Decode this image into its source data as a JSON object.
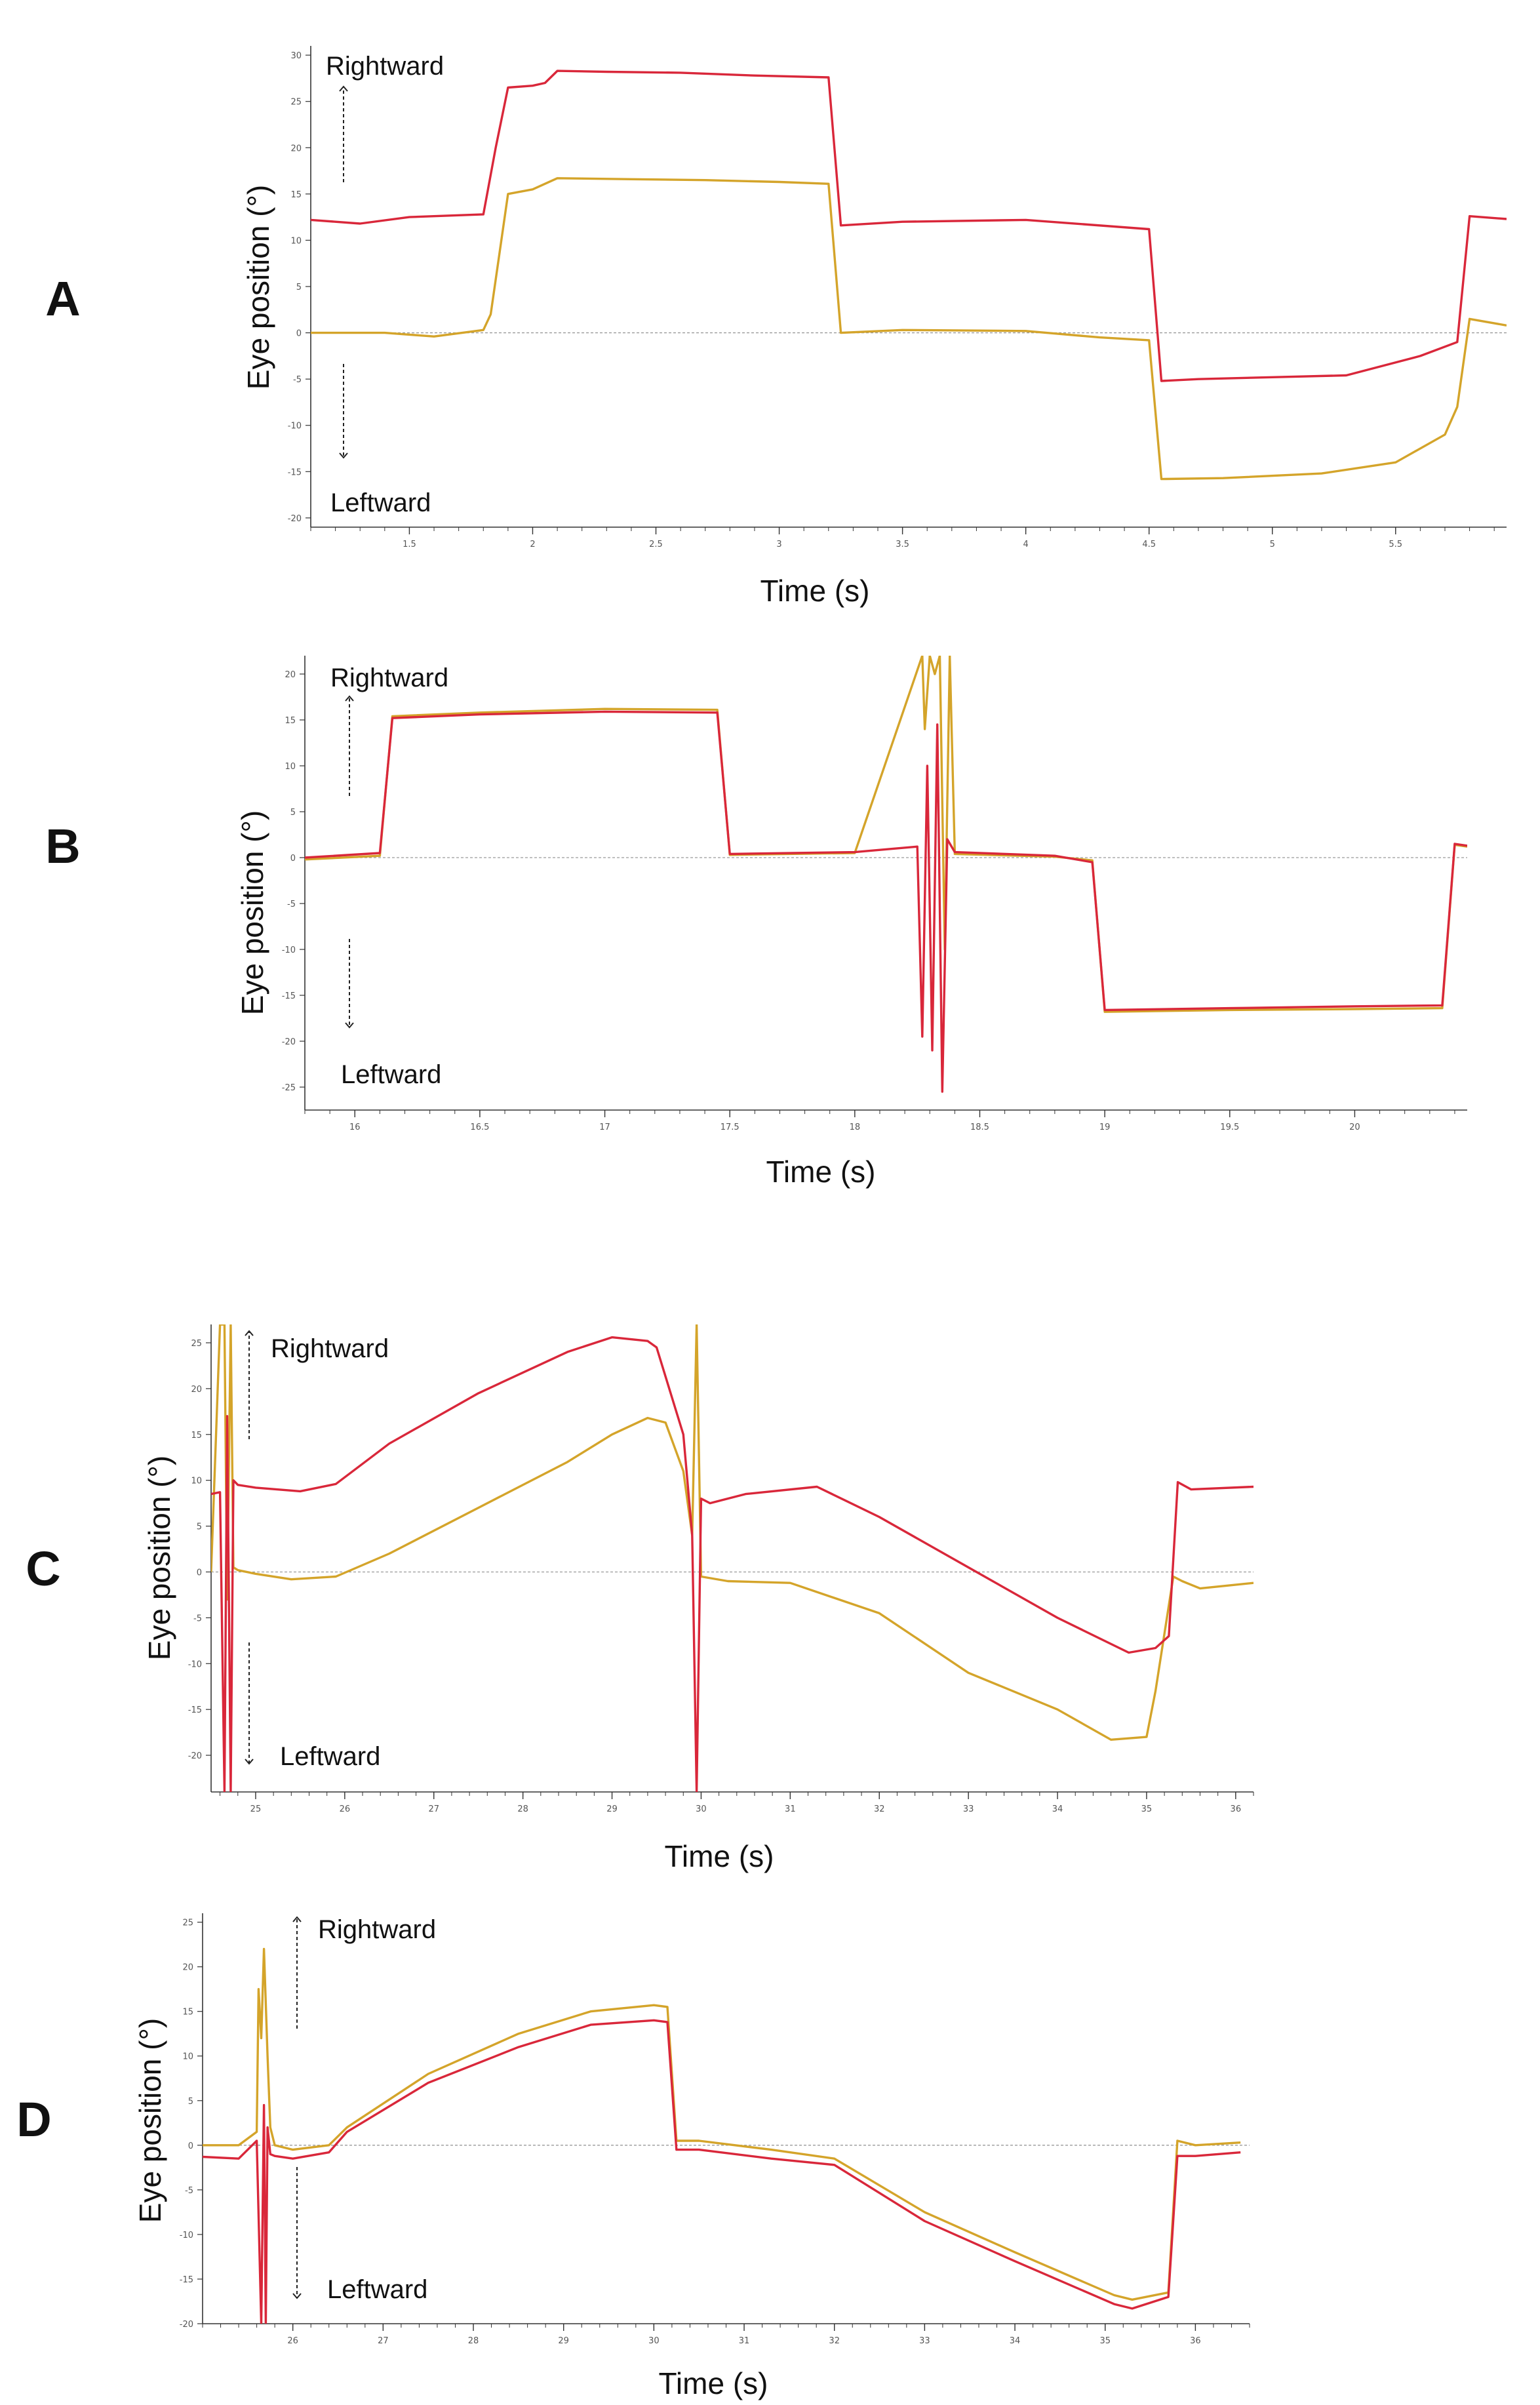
{
  "colors": {
    "right_eye": "#d9273a",
    "left_eye": "#d4a42a",
    "zero_line": "#9a9a9a",
    "axis": "#333333"
  },
  "labels": {
    "up": "Rightward",
    "down": "Leftward"
  },
  "chart_data": [
    {
      "type": "line",
      "panel": "A",
      "xlabel": "Time (s)",
      "ylabel": "Eye position  (°)",
      "xlim": [
        1.1,
        5.95
      ],
      "ylim": [
        -21,
        31
      ],
      "xticks": [
        1.5,
        2,
        2.5,
        3,
        3.5,
        4,
        4.5,
        5,
        5.5
      ],
      "yticks": [
        30,
        25,
        20,
        15,
        10,
        5,
        0,
        -5,
        -10,
        -15,
        -20
      ],
      "series": [
        {
          "name": "red",
          "x": [
            1.1,
            1.3,
            1.5,
            1.6,
            1.8,
            1.85,
            1.9,
            2.0,
            2.05,
            2.1,
            2.3,
            2.6,
            2.9,
            3.2,
            3.25,
            3.5,
            4.0,
            4.5,
            4.55,
            4.7,
            5.0,
            5.3,
            5.6,
            5.75,
            5.8,
            5.95
          ],
          "y": [
            12.2,
            11.8,
            12.5,
            12.6,
            12.8,
            20,
            26.5,
            26.7,
            27,
            28.3,
            28.2,
            28.1,
            27.8,
            27.6,
            11.6,
            12,
            12.2,
            11.2,
            -5.2,
            -5,
            -4.8,
            -4.6,
            -2.5,
            -1,
            12.6,
            12.3
          ]
        },
        {
          "name": "orange",
          "x": [
            1.1,
            1.4,
            1.6,
            1.8,
            1.83,
            1.9,
            2.0,
            2.1,
            2.4,
            2.7,
            3.0,
            3.2,
            3.25,
            3.5,
            4.0,
            4.3,
            4.5,
            4.55,
            4.8,
            5.2,
            5.5,
            5.7,
            5.75,
            5.8,
            5.95
          ],
          "y": [
            0,
            0,
            -0.4,
            0.3,
            2,
            15,
            15.5,
            16.7,
            16.6,
            16.5,
            16.3,
            16.1,
            0,
            0.3,
            0.2,
            -0.5,
            -0.8,
            -15.8,
            -15.7,
            -15.2,
            -14,
            -11,
            -8,
            1.5,
            0.8
          ]
        }
      ]
    },
    {
      "type": "line",
      "panel": "B",
      "xlabel": "Time (s)",
      "ylabel": "Eye position  (°)",
      "xlim": [
        15.8,
        20.45
      ],
      "ylim": [
        -27.5,
        22
      ],
      "xticks": [
        16,
        16.5,
        17,
        17.5,
        18,
        18.5,
        19,
        19.5,
        20
      ],
      "yticks": [
        20,
        15,
        10,
        5,
        0,
        -5,
        -10,
        -15,
        -20,
        -25
      ],
      "series": [
        {
          "name": "red",
          "x": [
            15.8,
            16.1,
            16.15,
            16.5,
            17.0,
            17.45,
            17.5,
            18.0,
            18.25,
            18.27,
            18.29,
            18.31,
            18.33,
            18.35,
            18.37,
            18.4,
            18.8,
            18.95,
            19.0,
            19.5,
            20.0,
            20.35,
            20.4,
            20.45
          ],
          "y": [
            0,
            0.5,
            15.2,
            15.6,
            15.9,
            15.8,
            0.4,
            0.6,
            1.2,
            -19.5,
            10,
            -21,
            14.5,
            -25.5,
            2,
            0.6,
            0.2,
            -0.5,
            -16.6,
            -16.4,
            -16.2,
            -16.1,
            1.5,
            1.3
          ]
        },
        {
          "name": "orange",
          "x": [
            15.8,
            16.1,
            16.15,
            16.5,
            17.0,
            17.45,
            17.5,
            18.0,
            18.27,
            18.28,
            18.3,
            18.32,
            18.34,
            18.36,
            18.38,
            18.4,
            18.8,
            18.95,
            19.0,
            19.5,
            20.0,
            20.35,
            20.4,
            20.45
          ],
          "y": [
            -0.2,
            0.2,
            15.4,
            15.8,
            16.2,
            16.1,
            0.3,
            0.5,
            22,
            14,
            22,
            20,
            22,
            -10,
            22,
            0.4,
            0.1,
            -0.3,
            -16.8,
            -16.6,
            -16.5,
            -16.4,
            1.4,
            1.2
          ]
        }
      ]
    },
    {
      "type": "line",
      "panel": "C",
      "xlabel": "Time (s)",
      "ylabel": "Eye position  (°)",
      "xlim": [
        24.5,
        36.2
      ],
      "ylim": [
        -24,
        27
      ],
      "xticks": [
        25,
        26,
        27,
        28,
        29,
        30,
        31,
        32,
        33,
        34,
        35,
        36
      ],
      "yticks": [
        25,
        20,
        15,
        10,
        5,
        0,
        -5,
        -10,
        -15,
        -20
      ],
      "series": [
        {
          "name": "red",
          "x": [
            24.5,
            24.6,
            24.65,
            24.68,
            24.72,
            24.75,
            24.8,
            25.0,
            25.5,
            25.9,
            26.5,
            27.5,
            28.5,
            29.0,
            29.4,
            29.5,
            29.8,
            29.9,
            29.95,
            30.0,
            30.1,
            30.5,
            31.3,
            32.0,
            33.0,
            34.0,
            34.8,
            35.1,
            35.25,
            35.35,
            35.5,
            36.2
          ],
          "y": [
            8.5,
            8.7,
            -24,
            17,
            -24,
            10,
            9.5,
            9.2,
            8.8,
            9.6,
            14,
            19.5,
            24,
            25.6,
            25.2,
            24.5,
            15,
            4,
            -24,
            8,
            7.5,
            8.5,
            9.3,
            6,
            0.5,
            -5,
            -8.8,
            -8.3,
            -7,
            9.8,
            9,
            9.3
          ]
        },
        {
          "name": "orange",
          "x": [
            24.5,
            24.6,
            24.65,
            24.68,
            24.72,
            24.75,
            24.8,
            25.0,
            25.4,
            25.9,
            26.5,
            27.5,
            28.5,
            29.0,
            29.4,
            29.6,
            29.8,
            29.9,
            29.95,
            30.0,
            30.3,
            31.0,
            32.0,
            33.0,
            34.0,
            34.6,
            35.0,
            35.1,
            35.3,
            35.4,
            35.6,
            36.2
          ],
          "y": [
            0,
            27,
            27,
            -3,
            27,
            0.5,
            0.2,
            -0.2,
            -0.8,
            -0.5,
            2,
            7,
            12,
            15,
            16.8,
            16.3,
            11,
            4,
            27,
            -0.5,
            -1,
            -1.2,
            -4.5,
            -11,
            -15,
            -18.3,
            -18,
            -13,
            -0.5,
            -1,
            -1.8,
            -1.2
          ]
        }
      ]
    },
    {
      "type": "line",
      "panel": "D",
      "xlabel": "Time (s)",
      "ylabel": "Eye position  (°)",
      "xlim": [
        25,
        36.6
      ],
      "ylim": [
        -20,
        26
      ],
      "xticks": [
        26,
        27,
        28,
        29,
        30,
        31,
        32,
        33,
        34,
        35,
        36
      ],
      "yticks": [
        25,
        20,
        15,
        10,
        5,
        0,
        -5,
        -10,
        -15,
        -20
      ],
      "series": [
        {
          "name": "red",
          "x": [
            25,
            25.4,
            25.6,
            25.65,
            25.68,
            25.7,
            25.72,
            25.75,
            25.8,
            26.0,
            26.4,
            26.6,
            27.5,
            28.5,
            29.3,
            30.0,
            30.15,
            30.25,
            30.5,
            31.3,
            32.0,
            33.0,
            34.0,
            35.1,
            35.3,
            35.7,
            35.8,
            36.0,
            36.5
          ],
          "y": [
            -1.3,
            -1.5,
            0.5,
            -20,
            4.5,
            -20,
            2,
            -1,
            -1.2,
            -1.5,
            -0.8,
            1.5,
            7,
            11,
            13.5,
            14,
            13.8,
            -0.5,
            -0.5,
            -1.5,
            -2.2,
            -8.5,
            -13,
            -17.8,
            -18.3,
            -17,
            -1.2,
            -1.2,
            -0.8
          ]
        },
        {
          "name": "orange",
          "x": [
            25,
            25.4,
            25.6,
            25.62,
            25.65,
            25.68,
            25.72,
            25.75,
            25.8,
            26.0,
            26.4,
            26.6,
            27.5,
            28.5,
            29.3,
            30.0,
            30.15,
            30.25,
            30.5,
            31.3,
            32.0,
            33.0,
            34.0,
            35.1,
            35.3,
            35.7,
            35.8,
            36.0,
            36.5
          ],
          "y": [
            0,
            0,
            1.5,
            17.5,
            12,
            22,
            10,
            2,
            0,
            -0.5,
            0,
            2,
            8,
            12.5,
            15,
            15.7,
            15.5,
            0.5,
            0.5,
            -0.5,
            -1.5,
            -7.5,
            -12,
            -16.8,
            -17.3,
            -16.5,
            0.5,
            0,
            0.3
          ]
        }
      ]
    }
  ]
}
